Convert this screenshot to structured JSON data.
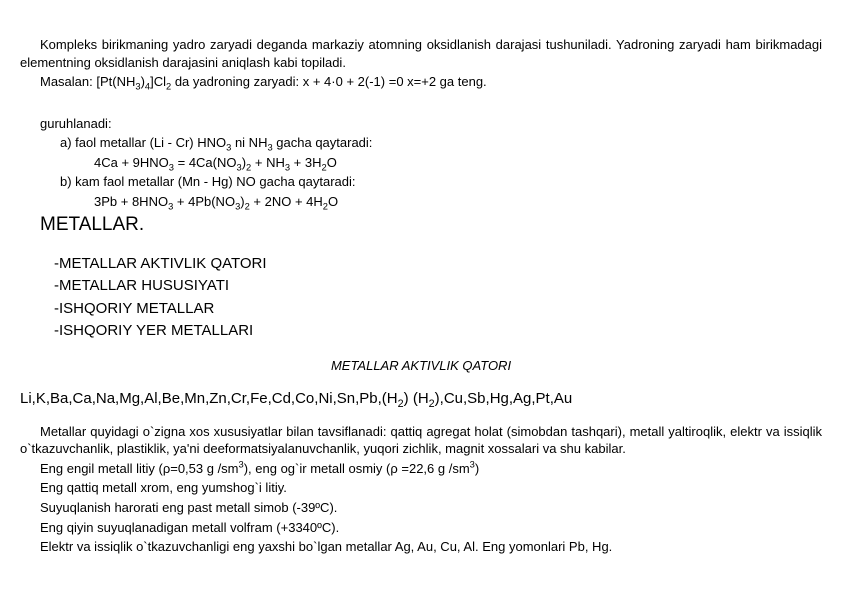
{
  "intro": {
    "p1": "Kompleks birikmaning yadro zaryadi deganda markaziy atomning oksidlanish darajasi tushuniladi. Yadroning  zaryadi ham birikmadagi elementning oksidlanish darajasini aniqlash kabi topiladi.",
    "p2_pre": "Masalan: [Pt(NH",
    "p2_s1": "3",
    "p2_mid1": ")",
    "p2_s2": "4",
    "p2_mid2": "]Cl",
    "p2_s3": "2",
    "p2_mid3": " da yadroning zaryadi: x + 4·0 + 2(-1) =0      x=+2 ga teng."
  },
  "grouped": {
    "title": "guruhlanadi:",
    "a_label_pre": "a) faol metallar (Li - Cr) HNO",
    "a_label_s1": "3",
    "a_label_mid": " ni NH",
    "a_label_s2": "3",
    "a_label_post": " gacha qaytaradi:",
    "a_eq": "4Ca + 9HNO{3} = 4Ca(NO{3}){2} + NH{3} + 3H{2}O",
    "b_label": "b) kam faol metallar (Mn - Hg) NO gacha qaytaradi:",
    "b_eq": "3Pb + 8HNO{3} + 4Pb(NO{3}){2} + 2NO + 4H{2}O"
  },
  "heading": "METALLAR.",
  "topics": [
    "-METALLAR AKTIVLIK QATORI",
    "-METALLAR HUSUSIYATI",
    "-ISHQORIY METALLAR",
    "-ISHQORIY YER METALLARI"
  ],
  "center_title": "METALLAR AKTIVLIK QATORI",
  "series": "Li,K,Ba,Ca,Na,Mg,Al,Be,Mn,Zn,Cr,Fe,Cd,Co,Ni,Sn,Pb,(H{2}) (H{2}),Cu,Sb,Hg,Ag,Pt,Au",
  "body": {
    "p1": "Metallar quyidagi o`zigna xos xususiyatlar bilan tavsiflanadi: qattiq agregat holat (simobdan tashqari), metall yaltiroqlik, elektr va issiqlik o`tkazuvchanlik, plastiklik, ya'ni deeformatsiyalanuvchanlik, yuqori zichlik, magnit xossalari va shu kabilar.",
    "density_pre": "Eng engil metall litiy (ρ=0,53 g /sm",
    "density_sup1": "3",
    "density_mid": "), eng og`ir metall  osmiy (ρ =22,6 g /sm",
    "density_sup2": "3",
    "density_post": ")",
    "p3": "Eng qattiq metall xrom, eng yumshog`i litiy.",
    "p4": "Suyuqlanish harorati eng past metall simob (-39ºC).",
    "p5": "Eng qiyin suyuqlanadigan metall volfram (+3340ºC).",
    "p6": " Elektr va issiqlik o`tkazuvchanligi eng yaxshi bo`lgan  metallar Ag, Au, Cu, Al. Eng       yomonlari Pb, Hg."
  }
}
